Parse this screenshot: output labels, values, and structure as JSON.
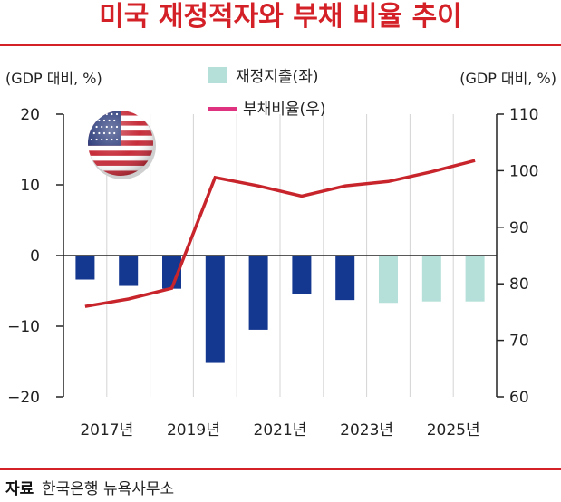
{
  "title": "미국 재정적자와 부채 비율 추이",
  "left_axis_unit": "(GDP 대비, %)",
  "right_axis_unit": "(GDP 대비, %)",
  "legend": {
    "bar_label": "재정지출(좌)",
    "line_label": "부채비율(우)"
  },
  "source": {
    "label": "자료",
    "text": "한국은행 뉴욕사무소"
  },
  "flag_icon": "us-flag-icon",
  "colors": {
    "title": "#d42027",
    "accent_rule": "#d42027",
    "bar_actual": "#143790",
    "bar_forecast": "#b5e0d9",
    "line": "#c8242b",
    "legend_line": "#e0337f"
  },
  "chart_data": {
    "type": "bar",
    "title": "미국 재정적자와 부채 비율 추이",
    "x": [
      2017,
      2018,
      2019,
      2020,
      2021,
      2022,
      2023,
      2024,
      2025,
      2026
    ],
    "x_tick_labels": [
      "2017년",
      "2019년",
      "2021년",
      "2023년",
      "2025년"
    ],
    "x_tick_values": [
      2017,
      2019,
      2021,
      2023,
      2025
    ],
    "series": [
      {
        "name": "재정지출(좌)",
        "type": "bar",
        "axis": "left",
        "values": [
          -3.4,
          -4.3,
          -4.7,
          -15.2,
          -10.5,
          -5.4,
          -6.3,
          -6.7,
          -6.5,
          -6.5
        ],
        "forecast_from_index": 7
      },
      {
        "name": "부채비율(우)",
        "type": "line",
        "axis": "right",
        "values": [
          76,
          77.3,
          79.2,
          98.8,
          97.3,
          95.5,
          97.3,
          98.1,
          99.8,
          101.8
        ]
      }
    ],
    "y_left": {
      "lim": [
        -20,
        20
      ],
      "ticks": [
        20,
        10,
        0,
        -10,
        -20
      ],
      "tick_labels": [
        "20",
        "10",
        "0",
        "−10",
        "−20"
      ]
    },
    "y_right": {
      "lim": [
        60,
        110
      ],
      "ticks": [
        110,
        100,
        90,
        80,
        70,
        60
      ],
      "tick_labels": [
        "110",
        "100",
        "90",
        "80",
        "70",
        "60"
      ]
    },
    "grid": "vertical",
    "legend_position": "top-center"
  }
}
